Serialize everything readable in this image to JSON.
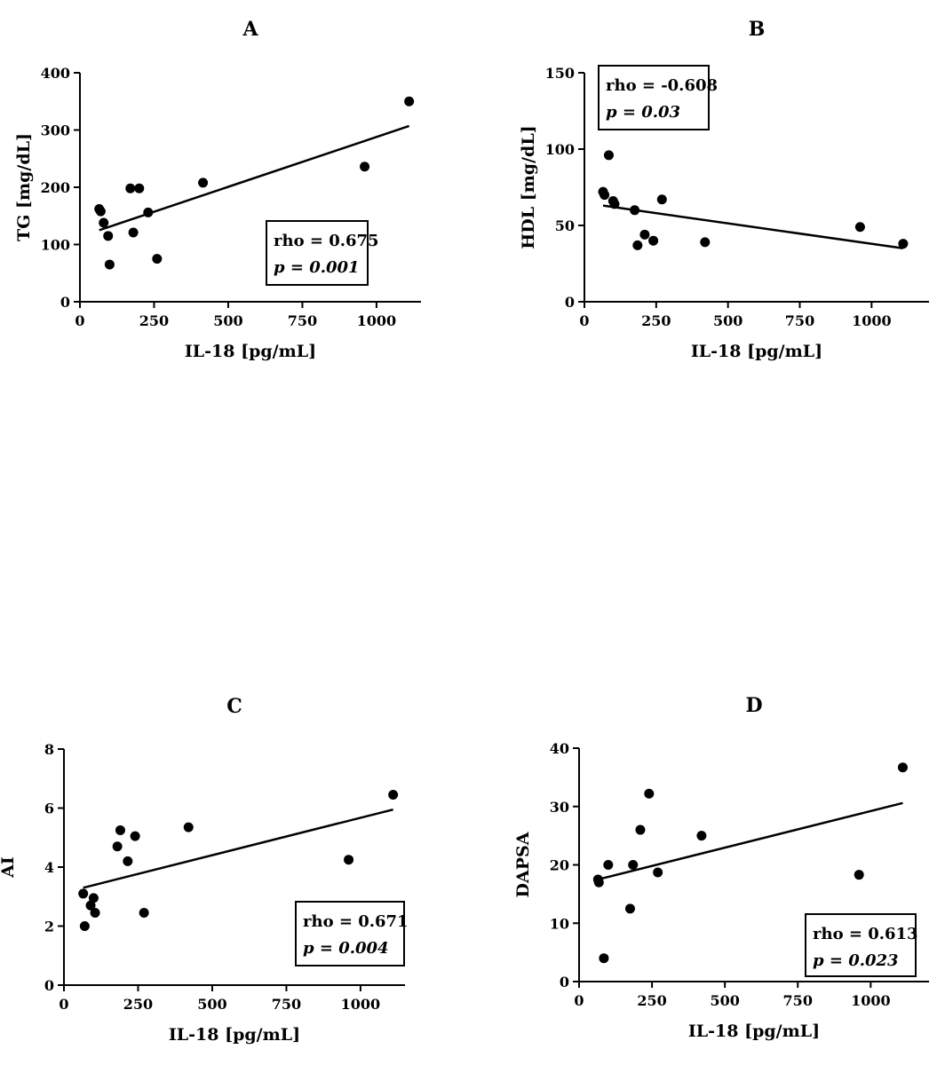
{
  "chart_data": [
    {
      "type": "scatter",
      "panel_label": "A",
      "xlabel": "IL-18 [pg/mL]",
      "ylabel": "TG [mg/dL]",
      "xlim": [
        0,
        1150
      ],
      "ylim": [
        0,
        400
      ],
      "xticks": [
        0,
        250,
        500,
        750,
        1000
      ],
      "yticks": [
        0,
        100,
        200,
        300,
        400
      ],
      "grid": false,
      "x": [
        65,
        70,
        80,
        95,
        100,
        170,
        180,
        200,
        230,
        260,
        415,
        960,
        1110
      ],
      "y": [
        162,
        158,
        138,
        115,
        65,
        198,
        121,
        198,
        156,
        75,
        208,
        236,
        350
      ],
      "fit_line": {
        "x": [
          65,
          1110
        ],
        "y": [
          125,
          307
        ]
      },
      "stats": {
        "rho": "rho = 0.675",
        "p": "p = 0.001",
        "position": "bottom-right"
      }
    },
    {
      "type": "scatter",
      "panel_label": "B",
      "xlabel": "IL-18 [pg/mL]",
      "ylabel": "HDL [mg/dL]",
      "xlim": [
        0,
        1200
      ],
      "ylim": [
        0,
        150
      ],
      "xticks": [
        0,
        250,
        500,
        750,
        1000
      ],
      "yticks": [
        0,
        50,
        100,
        150
      ],
      "grid": false,
      "x": [
        65,
        70,
        85,
        100,
        105,
        175,
        185,
        210,
        240,
        270,
        420,
        960,
        1110
      ],
      "y": [
        72,
        70,
        96,
        66,
        64,
        60,
        37,
        44,
        40,
        67,
        39,
        49,
        38
      ],
      "fit_line": {
        "x": [
          65,
          1110
        ],
        "y": [
          63,
          35
        ]
      },
      "stats": {
        "rho": "rho = -0.608",
        "p": "p = 0.03",
        "position": "top-left"
      }
    },
    {
      "type": "scatter",
      "panel_label": "C",
      "xlabel": "IL-18 [pg/mL]",
      "ylabel": "AI",
      "xlim": [
        0,
        1150
      ],
      "ylim": [
        0,
        8
      ],
      "xticks": [
        0,
        250,
        500,
        750,
        1000
      ],
      "yticks": [
        0,
        2,
        4,
        6,
        8
      ],
      "grid": false,
      "x": [
        65,
        70,
        90,
        100,
        105,
        180,
        190,
        215,
        240,
        270,
        420,
        960,
        1110
      ],
      "y": [
        3.1,
        2.0,
        2.7,
        2.95,
        2.45,
        4.7,
        5.25,
        4.2,
        5.05,
        2.45,
        5.35,
        4.25,
        6.45
      ],
      "fit_line": {
        "x": [
          65,
          1110
        ],
        "y": [
          3.3,
          5.95
        ]
      },
      "stats": {
        "rho": "rho = 0.671",
        "p": "p = 0.004",
        "position": "bottom-right"
      }
    },
    {
      "type": "scatter",
      "panel_label": "D",
      "xlabel": "IL-18 [pg/mL]",
      "ylabel": "DAPSA",
      "xlim": [
        0,
        1200
      ],
      "ylim": [
        0,
        40
      ],
      "xticks": [
        0,
        250,
        500,
        750,
        1000
      ],
      "yticks": [
        0,
        10,
        20,
        30,
        40
      ],
      "grid": false,
      "x": [
        65,
        68,
        85,
        100,
        175,
        185,
        210,
        240,
        270,
        420,
        960,
        1110
      ],
      "y": [
        17.5,
        17.0,
        4.0,
        20.0,
        12.5,
        20.0,
        26.0,
        32.2,
        18.7,
        25.0,
        18.3,
        36.7
      ],
      "fit_line": {
        "x": [
          65,
          1110
        ],
        "y": [
          17.5,
          30.6
        ]
      },
      "stats": {
        "rho": "rho = 0.613",
        "p": "p = 0.023",
        "position": "bottom-right"
      }
    }
  ]
}
